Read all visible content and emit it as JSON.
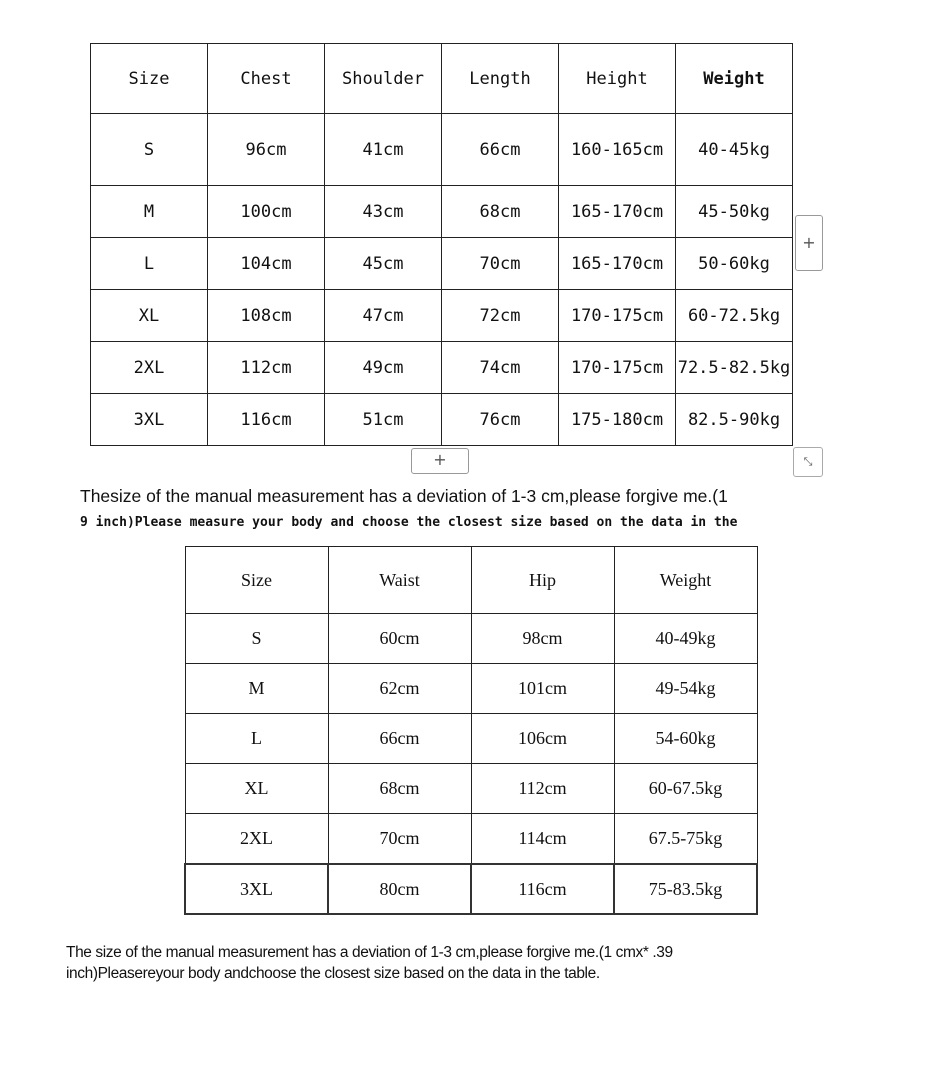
{
  "table1": {
    "headers": [
      "Size",
      "Chest",
      "Shoulder",
      "Length",
      "Height",
      "Weight"
    ],
    "rows": [
      [
        "S",
        "96cm",
        "41cm",
        "66cm",
        "160-165cm",
        "40-45kg"
      ],
      [
        "M",
        "100cm",
        "43cm",
        "68cm",
        "165-170cm",
        "45-50kg"
      ],
      [
        "L",
        "104cm",
        "45cm",
        "70cm",
        "165-170cm",
        "50-60kg"
      ],
      [
        "XL",
        "108cm",
        "47cm",
        "72cm",
        "170-175cm",
        "60-72.5kg"
      ],
      [
        "2XL",
        "112cm",
        "49cm",
        "74cm",
        "170-175cm",
        "72.5-82.5kg"
      ],
      [
        "3XL",
        "116cm",
        "51cm",
        "76cm",
        "175-180cm",
        "82.5-90kg"
      ]
    ]
  },
  "note1": {
    "line1": "Thesize of the manual measurement has a deviation of 1-3 cm,please forgive me.(1",
    "line2": "9 inch)Please measure your body and choose the closest size based on the data in the"
  },
  "table2": {
    "headers": [
      "Size",
      "Waist",
      "Hip",
      "Weight"
    ],
    "rows": [
      [
        "S",
        "60cm",
        "98cm",
        "40-49kg"
      ],
      [
        "M",
        "62cm",
        "101cm",
        "49-54kg"
      ],
      [
        "L",
        "66cm",
        "106cm",
        "54-60kg"
      ],
      [
        "XL",
        "68cm",
        "112cm",
        "60-67.5kg"
      ],
      [
        "2XL",
        "70cm",
        "114cm",
        "67.5-75kg"
      ],
      [
        "3XL",
        "80cm",
        "116cm",
        "75-83.5kg"
      ]
    ]
  },
  "note2": {
    "line1": "The size of the manual measurement has a deviation of 1-3 cm,please forgive me.(1 cmx* .39",
    "line2": "inch)Pleasereyour body andchoose the closest size based on the data in the table."
  },
  "controls": {
    "add_symbol": "+",
    "resize_symbol": "⤡"
  }
}
